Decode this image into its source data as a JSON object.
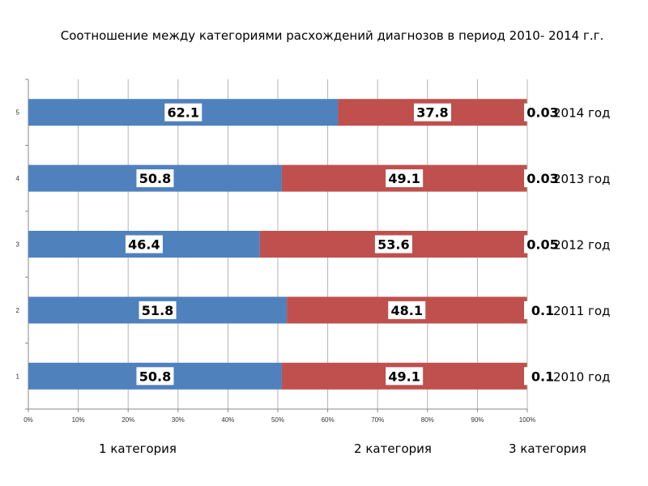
{
  "chart_data": {
    "type": "bar",
    "orientation": "horizontal",
    "stacked": true,
    "title": "Соотношение между категориями расхождений диагнозов  в период 2010- 2014 г.г.",
    "categories": [
      "1",
      "2",
      "3",
      "4",
      "5"
    ],
    "year_labels": [
      "2010 год",
      "2011 год",
      "2012 год",
      "2013 год",
      "2014 год"
    ],
    "series": [
      {
        "name": "1 категория",
        "color": "#4F81BD",
        "values": [
          50.8,
          51.8,
          46.4,
          50.8,
          62.1
        ]
      },
      {
        "name": "2 категория",
        "color": "#C0504D",
        "values": [
          49.1,
          48.1,
          53.6,
          49.1,
          37.8
        ]
      },
      {
        "name": "3 категория",
        "color": "#9BBB59",
        "values": [
          0.1,
          0.1,
          0.05,
          0.03,
          0.03
        ]
      }
    ],
    "data_labels": [
      [
        "50.8",
        "51.8",
        "46.4",
        "50.8",
        "62.1"
      ],
      [
        "49.1",
        "48.1",
        "53.6",
        "49.1",
        "37.8"
      ],
      [
        "0.1",
        "0.1",
        "0.05",
        "0.03",
        "0.03"
      ]
    ],
    "x_ticks": [
      "0%",
      "10%",
      "20%",
      "30%",
      "40%",
      "50%",
      "60%",
      "70%",
      "80%",
      "90%",
      "100%"
    ],
    "xlim": [
      0,
      100
    ],
    "grid": true,
    "legend": "bottom"
  }
}
